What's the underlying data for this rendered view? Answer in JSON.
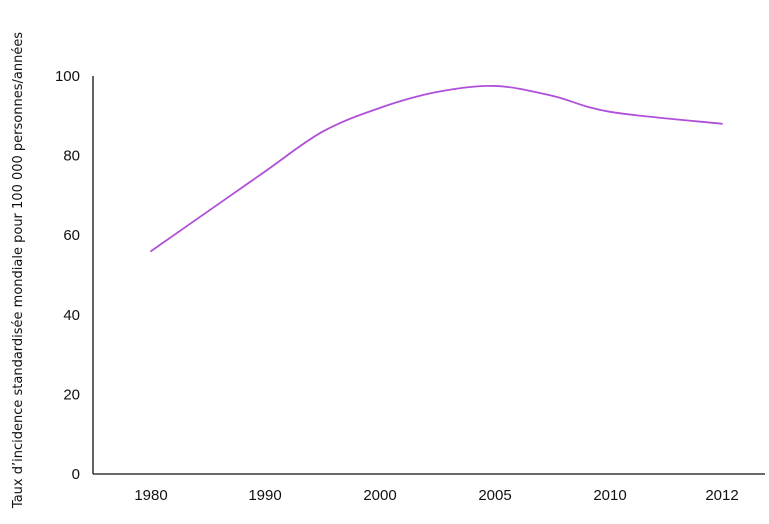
{
  "chart_data": {
    "type": "line",
    "title": "",
    "xlabel": "",
    "ylabel": "Taux d’incidence standardisée mondiale pour 100 000 personnes/années",
    "x_tick_labels": [
      "1980",
      "1990",
      "2000",
      "2005",
      "2010",
      "2012"
    ],
    "y_ticks": [
      0,
      20,
      40,
      60,
      80,
      100
    ],
    "ylim": [
      0,
      100
    ],
    "grid": false,
    "legend": "none",
    "x": [
      "1980",
      "1985",
      "1990",
      "1995",
      "2000",
      "2002.5",
      "2005",
      "2007.5",
      "2010",
      "2012"
    ],
    "series": [
      {
        "values": [
          56,
          66,
          76,
          86,
          92,
          96,
          97.5,
          95,
          91,
          88
        ],
        "color": "#b04fd8"
      }
    ]
  }
}
